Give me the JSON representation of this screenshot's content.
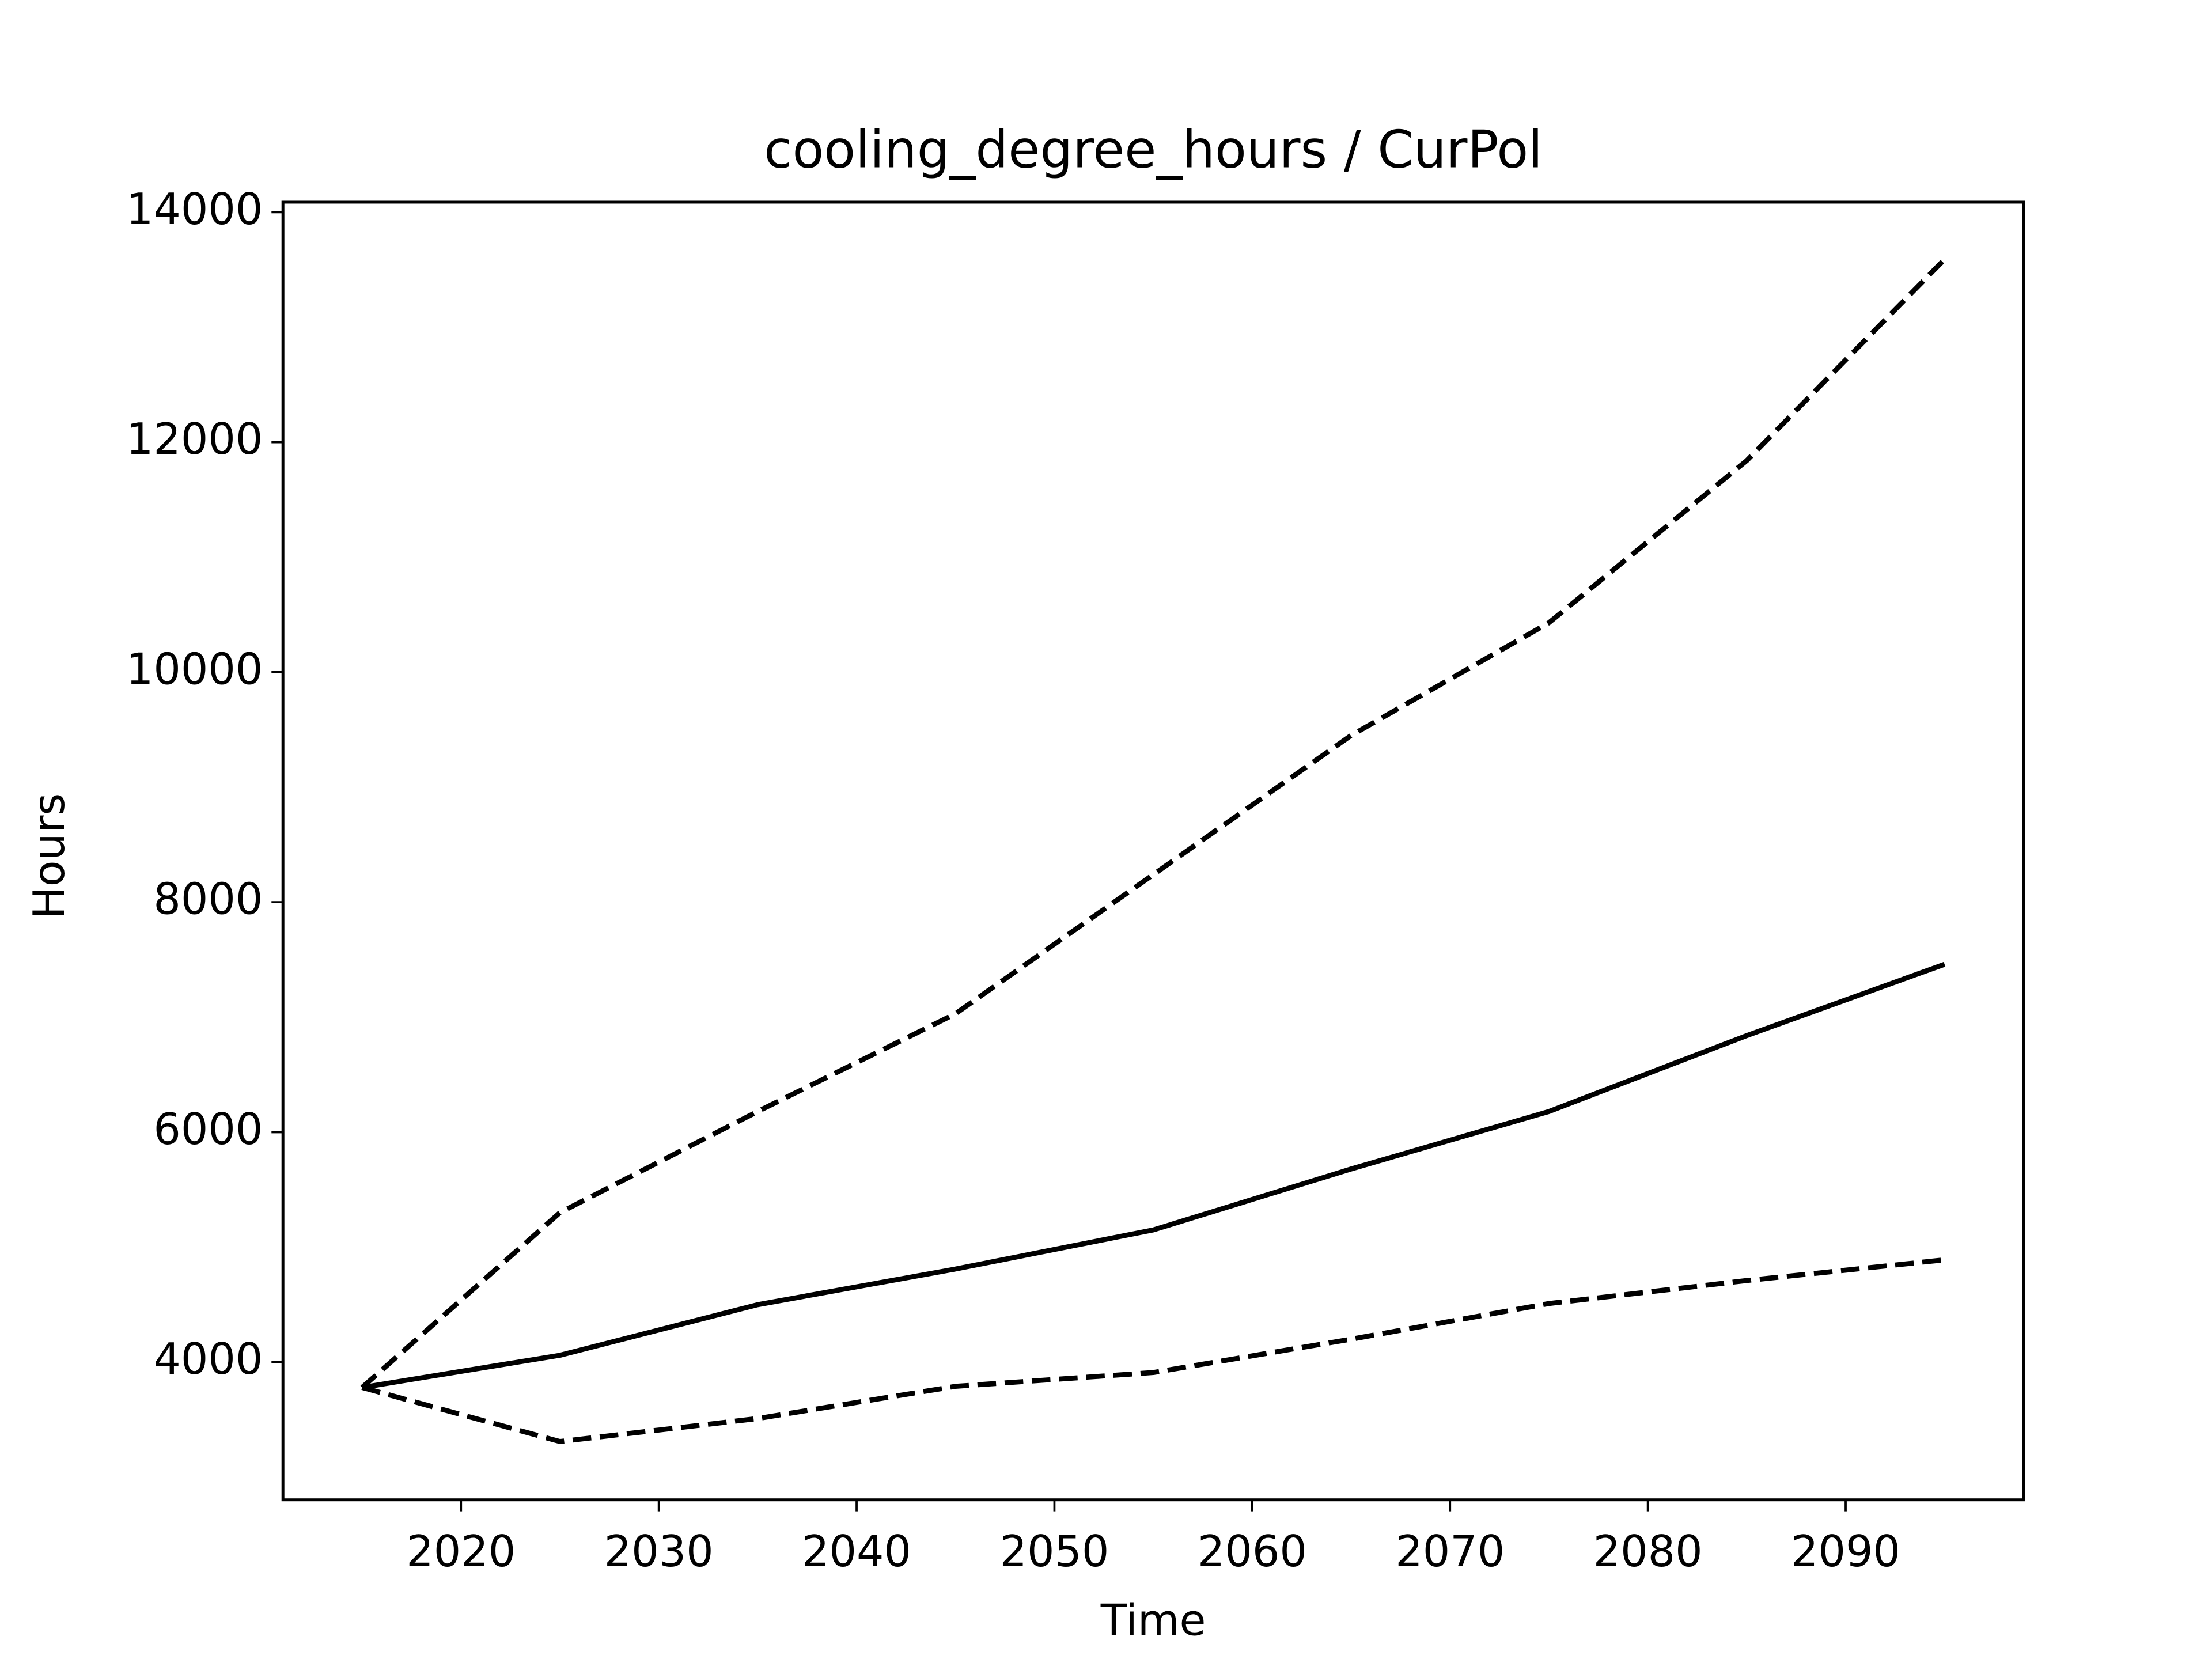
{
  "chart_data": {
    "type": "line",
    "title": "cooling_degree_hours / CurPol",
    "x_label": "Time",
    "y_label": "Hours",
    "x": [
      2015,
      2025,
      2035,
      2045,
      2055,
      2065,
      2075,
      2085,
      2095
    ],
    "series": [
      {
        "color": "#000000",
        "linestyle": "solid",
        "values": [
          3780,
          4060,
          4500,
          4810,
          5150,
          5680,
          6180,
          6840,
          7460
        ]
      },
      {
        "color": "#000000",
        "linestyle": "dashed",
        "values": [
          3780,
          5300,
          6180,
          7030,
          8240,
          9450,
          10430,
          11840,
          13590
        ]
      },
      {
        "color": "#000000",
        "linestyle": "dashed",
        "values": [
          3780,
          3310,
          3510,
          3790,
          3910,
          4200,
          4510,
          4710,
          4890
        ]
      }
    ],
    "xlim": [
      2011,
      2099
    ],
    "ylim": [
      2803,
      14087
    ],
    "xticks": [
      2020,
      2030,
      2040,
      2050,
      2060,
      2070,
      2080,
      2090
    ],
    "yticks": [
      4000,
      6000,
      8000,
      10000,
      12000,
      14000
    ],
    "grid": false
  }
}
